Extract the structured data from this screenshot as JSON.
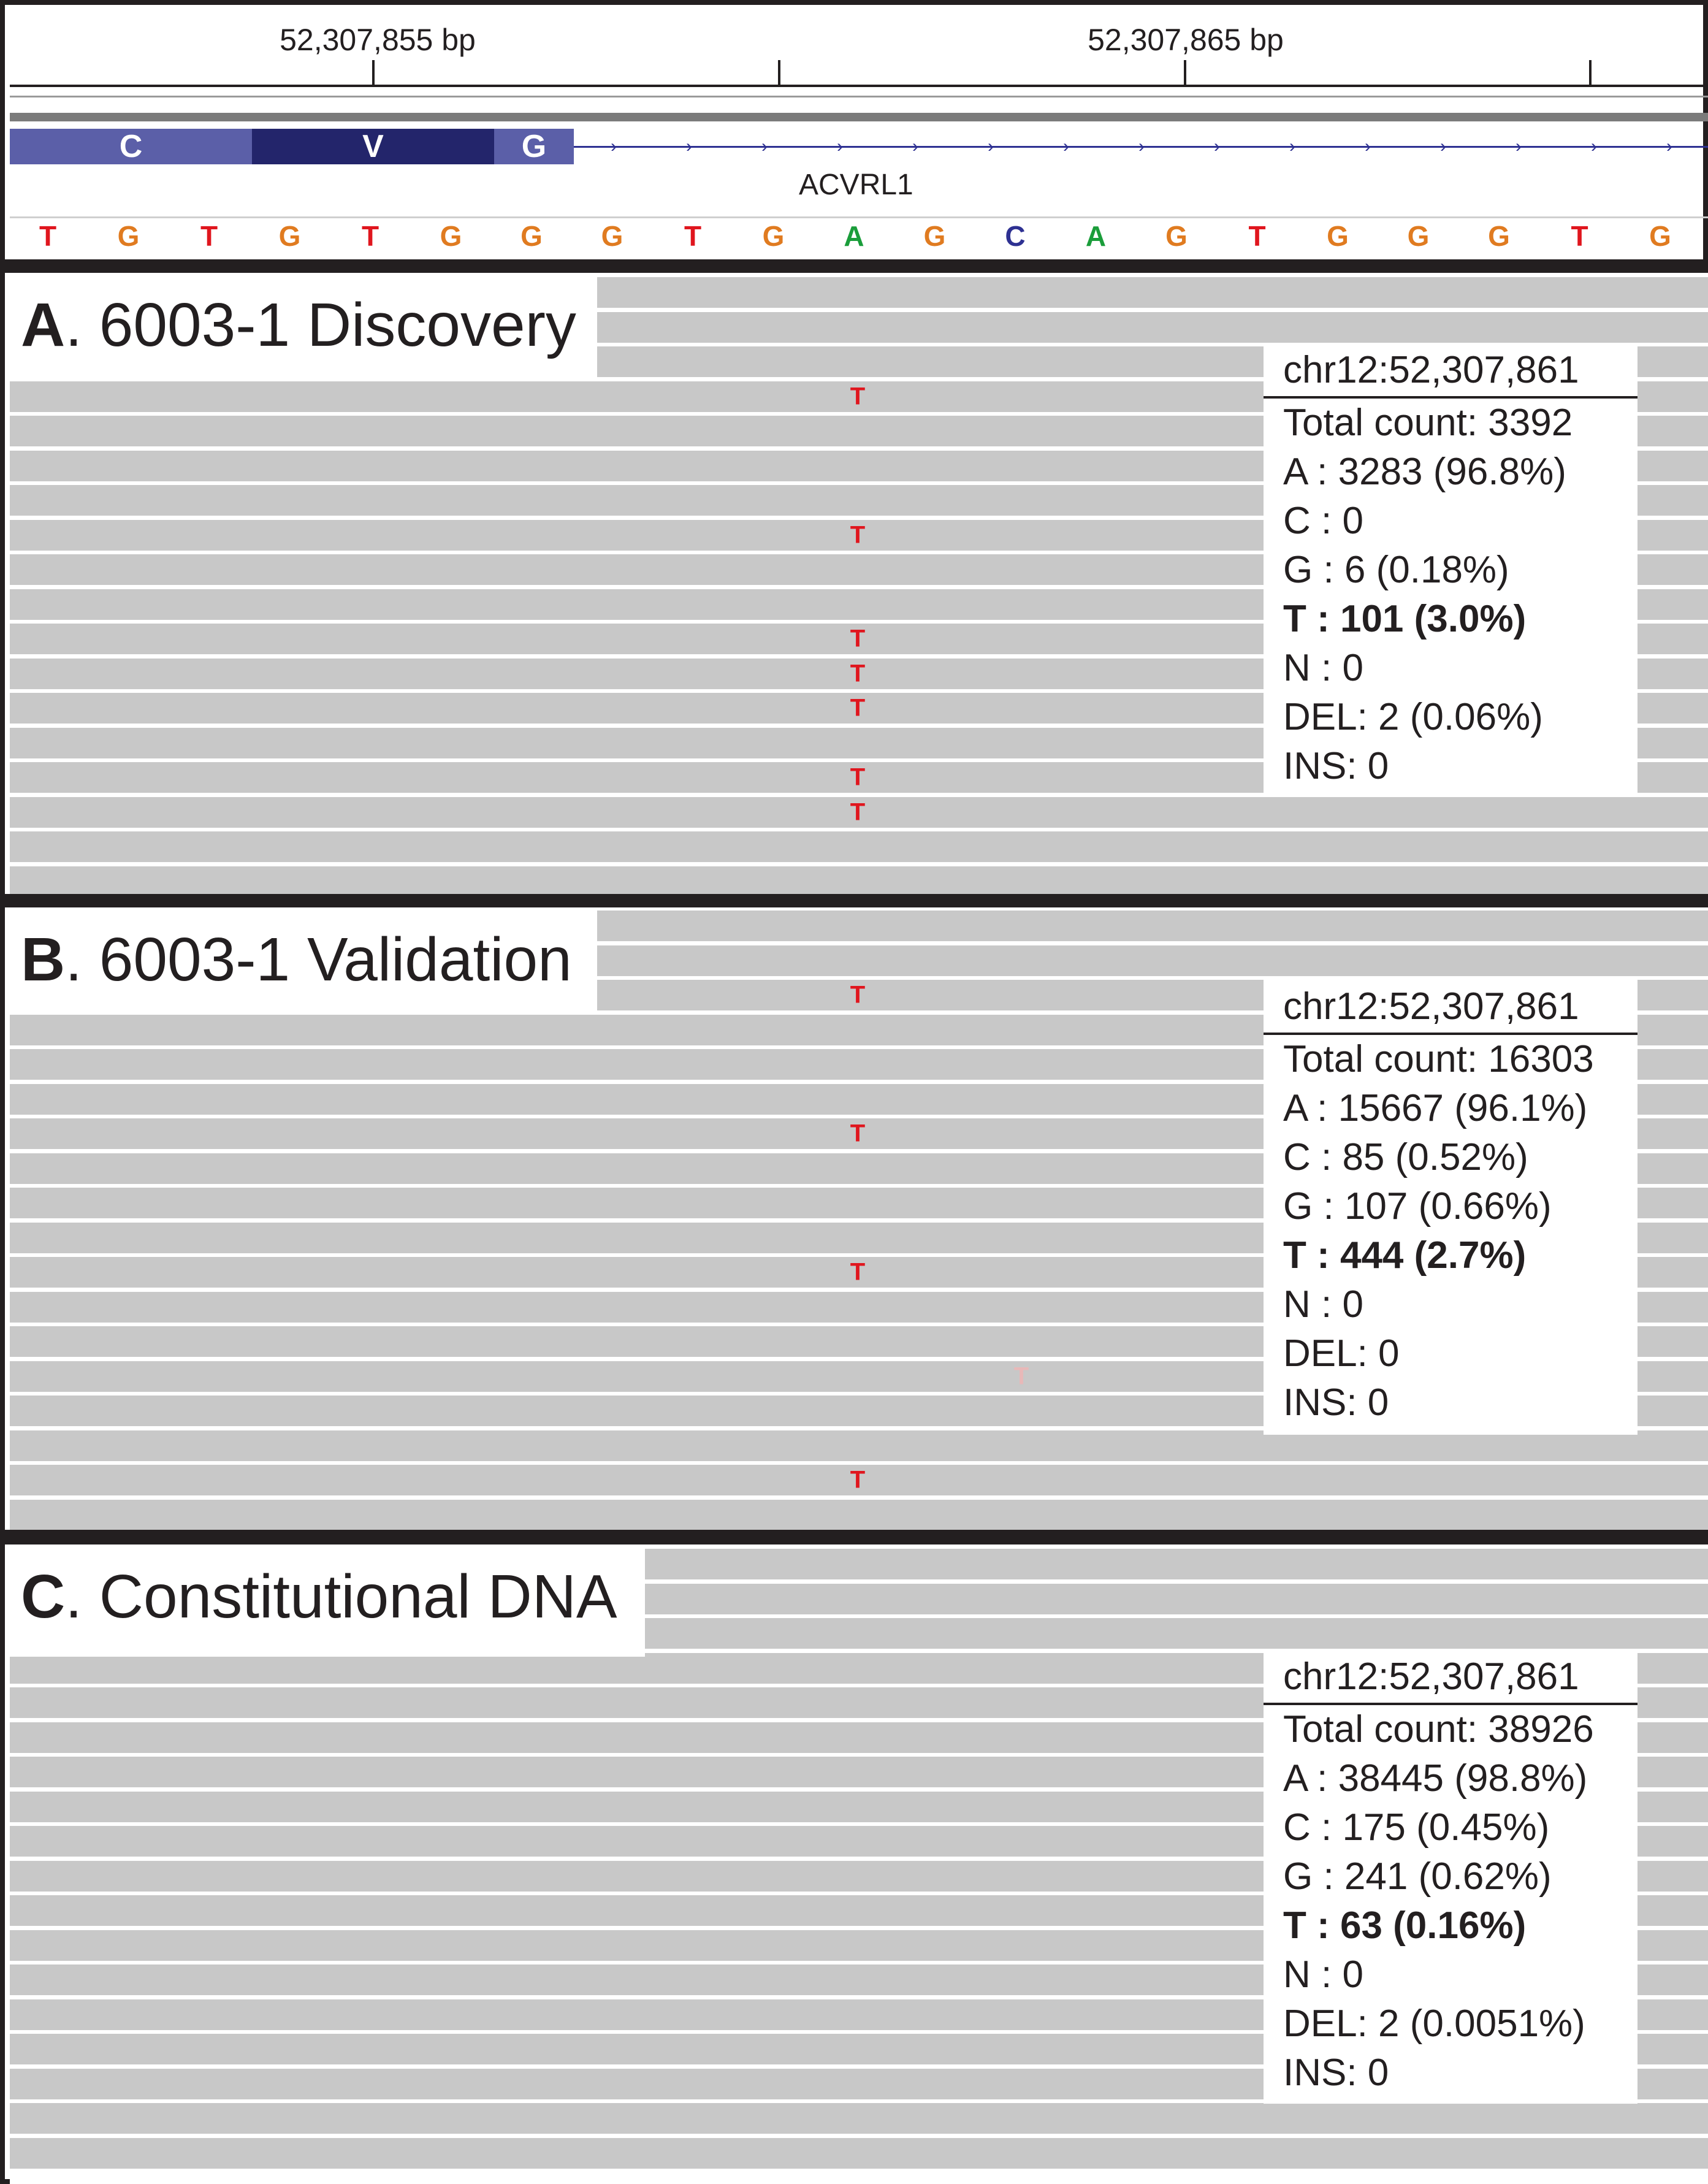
{
  "ruler": {
    "labels": [
      "52,307,855 bp",
      "52,307,865 bp"
    ]
  },
  "gene": {
    "name": "ACVRL1",
    "exons": [
      {
        "aa": "C",
        "color": "#5b5fa8"
      },
      {
        "aa": "V",
        "color": "#23256b"
      },
      {
        "aa": "G",
        "color": "#5b5fa8"
      }
    ]
  },
  "sequence": {
    "bases": [
      "T",
      "G",
      "T",
      "G",
      "T",
      "G",
      "G",
      "G",
      "T",
      "G",
      "A",
      "G",
      "C",
      "A",
      "G",
      "T",
      "G",
      "G",
      "G",
      "T",
      "G"
    ],
    "colors": {
      "A": "#1a9d3a",
      "C": "#2e3192",
      "G": "#e07b20",
      "T": "#e0161e"
    }
  },
  "mismatch_base": "T",
  "panels": [
    {
      "letter": "A",
      "title": ". 6003-1 Discovery",
      "popup": {
        "locus": "chr12:52,307,861",
        "lines": [
          {
            "text": "Total count: 3392",
            "bold": false
          },
          {
            "text": "A : 3283 (96.8%)",
            "bold": false
          },
          {
            "text": "C : 0",
            "bold": false
          },
          {
            "text": "G : 6 (0.18%)",
            "bold": false
          },
          {
            "text": "T : 101 (3.0%)",
            "bold": true
          },
          {
            "text": "N : 0",
            "bold": false
          },
          {
            "text": "DEL: 2 (0.06%)",
            "bold": false
          },
          {
            "text": "INS: 0",
            "bold": false
          }
        ]
      }
    },
    {
      "letter": "B",
      "title": ". 6003-1 Validation",
      "popup": {
        "locus": "chr12:52,307,861",
        "lines": [
          {
            "text": "Total count: 16303",
            "bold": false
          },
          {
            "text": "A : 15667 (96.1%)",
            "bold": false
          },
          {
            "text": "C : 85 (0.52%)",
            "bold": false
          },
          {
            "text": "G : 107 (0.66%)",
            "bold": false
          },
          {
            "text": "T : 444 (2.7%)",
            "bold": true
          },
          {
            "text": "N : 0",
            "bold": false
          },
          {
            "text": "DEL: 0",
            "bold": false
          },
          {
            "text": "INS: 0",
            "bold": false
          }
        ]
      }
    },
    {
      "letter": "C",
      "title": ". Constitutional DNA",
      "popup": {
        "locus": "chr12:52,307,861",
        "lines": [
          {
            "text": "Total count: 38926",
            "bold": false
          },
          {
            "text": "A : 38445 (98.8%)",
            "bold": false
          },
          {
            "text": "C : 175 (0.45%)",
            "bold": false
          },
          {
            "text": "G : 241 (0.62%)",
            "bold": false
          },
          {
            "text": "T : 63 (0.16%)",
            "bold": true
          },
          {
            "text": "N : 0",
            "bold": false
          },
          {
            "text": "DEL: 2 (0.0051%)",
            "bold": false
          },
          {
            "text": "INS: 0",
            "bold": false
          }
        ]
      }
    }
  ]
}
